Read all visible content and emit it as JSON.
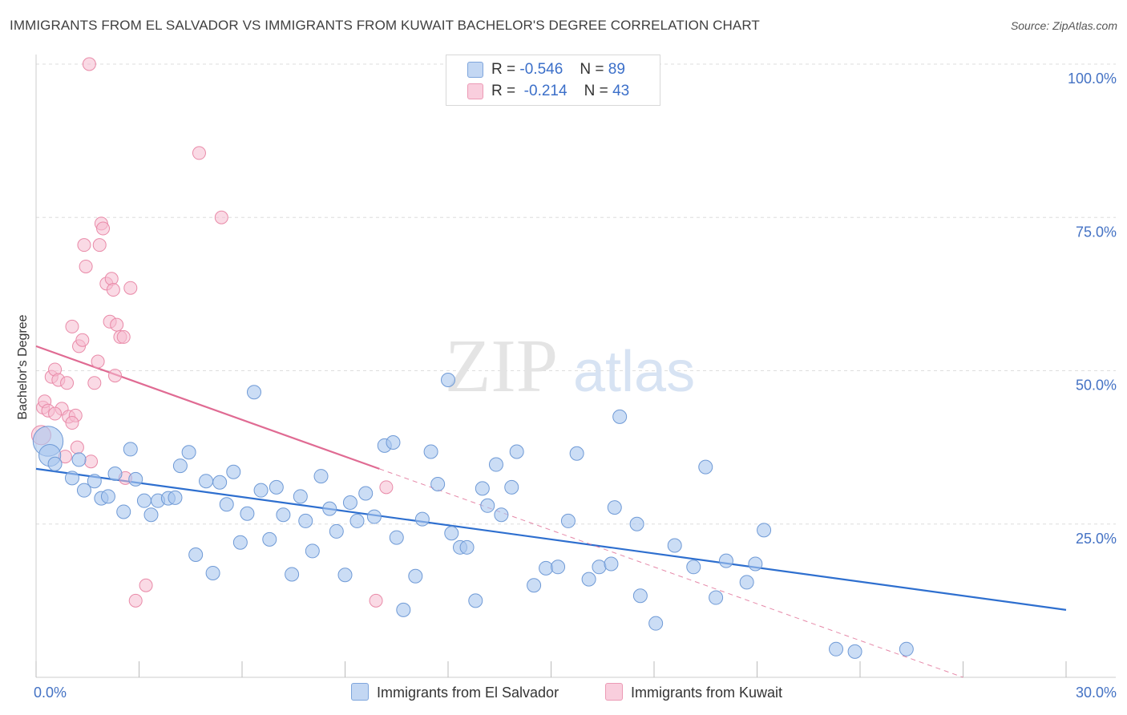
{
  "title": "IMMIGRANTS FROM EL SALVADOR VS IMMIGRANTS FROM KUWAIT BACHELOR'S DEGREE CORRELATION CHART",
  "source": "Source: ZipAtlas.com",
  "watermark": {
    "zip": "ZIP",
    "atlas": "atlas"
  },
  "legend": {
    "el_salvador": {
      "r_label": "R =",
      "r_value": "-0.546",
      "n_label": "N =",
      "n_value": "89"
    },
    "kuwait": {
      "r_label": "R =",
      "r_value": "-0.214",
      "n_label": "N =",
      "n_value": "43"
    }
  },
  "bottom_legend": {
    "el_salvador": "Immigrants from El Salvador",
    "kuwait": "Immigrants from Kuwait"
  },
  "colors": {
    "blue_fill": "#a9c6ee",
    "blue_stroke": "#6f9ad6",
    "blue_line": "#2e6fcf",
    "pink_fill": "#f6bcd0",
    "pink_stroke": "#e98aa8",
    "pink_line": "#e06b93",
    "axis_label": "#4472c4"
  },
  "chart_data": {
    "type": "scatter",
    "title": "IMMIGRANTS FROM EL SALVADOR VS IMMIGRANTS FROM KUWAIT BACHELOR'S DEGREE CORRELATION CHART",
    "xlabel": "",
    "ylabel": "Bachelor's Degree",
    "xlim": [
      0,
      30
    ],
    "ylim": [
      0,
      100
    ],
    "x_tick_labels": [
      "0.0%",
      "30.0%"
    ],
    "y_ticks": [
      {
        "value": 100,
        "label": "100.0%"
      },
      {
        "value": 75,
        "label": "75.0%"
      },
      {
        "value": 50,
        "label": "50.0%"
      },
      {
        "value": 25,
        "label": "25.0%"
      }
    ],
    "grid": "horizontal dashed",
    "legend_position": "top-center",
    "series": [
      {
        "name": "Immigrants from El Salvador",
        "color": "blue",
        "trend": {
          "x0": 0,
          "y0": 34.0,
          "x1": 30,
          "y1": 11.0,
          "dashed_extension": false
        },
        "points": [
          [
            0.35,
            38.5,
            2.2
          ],
          [
            0.4,
            36.2,
            1.6
          ],
          [
            0.55,
            34.8,
            1
          ],
          [
            1.05,
            32.5,
            1
          ],
          [
            1.25,
            35.5,
            1
          ],
          [
            1.4,
            30.5,
            1
          ],
          [
            1.7,
            32.0,
            1
          ],
          [
            1.9,
            29.2,
            1
          ],
          [
            2.1,
            29.5,
            1
          ],
          [
            2.3,
            33.2,
            1
          ],
          [
            2.55,
            27.0,
            1
          ],
          [
            2.75,
            37.2,
            1
          ],
          [
            2.9,
            32.3,
            1
          ],
          [
            3.15,
            28.8,
            1
          ],
          [
            3.35,
            26.5,
            1
          ],
          [
            3.55,
            28.8,
            1
          ],
          [
            3.85,
            29.2,
            1
          ],
          [
            4.05,
            29.3,
            1
          ],
          [
            4.2,
            34.5,
            1
          ],
          [
            4.45,
            36.7,
            1
          ],
          [
            4.65,
            20.0,
            1
          ],
          [
            4.95,
            32.0,
            1
          ],
          [
            5.15,
            17.0,
            1
          ],
          [
            5.35,
            31.8,
            1
          ],
          [
            5.55,
            28.2,
            1
          ],
          [
            5.75,
            33.5,
            1
          ],
          [
            5.95,
            22.0,
            1
          ],
          [
            6.15,
            26.7,
            1
          ],
          [
            6.35,
            46.5,
            1
          ],
          [
            6.55,
            30.5,
            1
          ],
          [
            6.8,
            22.5,
            1
          ],
          [
            7.0,
            31.0,
            1
          ],
          [
            7.2,
            26.5,
            1
          ],
          [
            7.45,
            16.8,
            1
          ],
          [
            7.7,
            29.5,
            1
          ],
          [
            7.85,
            25.5,
            1
          ],
          [
            8.05,
            20.6,
            1
          ],
          [
            8.3,
            32.8,
            1
          ],
          [
            8.55,
            27.5,
            1
          ],
          [
            8.75,
            23.8,
            1
          ],
          [
            9.0,
            16.7,
            1
          ],
          [
            9.15,
            28.5,
            1
          ],
          [
            9.35,
            25.5,
            1
          ],
          [
            9.6,
            30.0,
            1
          ],
          [
            9.85,
            26.2,
            1
          ],
          [
            10.15,
            37.8,
            1
          ],
          [
            10.4,
            38.3,
            1
          ],
          [
            10.5,
            22.8,
            1
          ],
          [
            10.7,
            11.0,
            1
          ],
          [
            11.05,
            16.5,
            1
          ],
          [
            11.25,
            25.8,
            1
          ],
          [
            11.5,
            36.8,
            1
          ],
          [
            11.7,
            31.5,
            1
          ],
          [
            12.0,
            48.5,
            1
          ],
          [
            12.1,
            23.5,
            1
          ],
          [
            12.35,
            21.2,
            1
          ],
          [
            12.55,
            21.2,
            1
          ],
          [
            12.8,
            12.5,
            1
          ],
          [
            13.0,
            30.8,
            1
          ],
          [
            13.15,
            28.0,
            1
          ],
          [
            13.4,
            34.7,
            1
          ],
          [
            13.55,
            26.5,
            1
          ],
          [
            13.85,
            31.0,
            1
          ],
          [
            14.0,
            36.8,
            1
          ],
          [
            14.5,
            15.0,
            1
          ],
          [
            14.85,
            17.8,
            1
          ],
          [
            15.2,
            18.0,
            1
          ],
          [
            15.5,
            25.5,
            1
          ],
          [
            15.75,
            36.5,
            1
          ],
          [
            16.1,
            16.0,
            1
          ],
          [
            16.4,
            18.0,
            1
          ],
          [
            16.75,
            18.5,
            1
          ],
          [
            16.85,
            27.7,
            1
          ],
          [
            17.0,
            42.5,
            1
          ],
          [
            17.5,
            25.0,
            1
          ],
          [
            17.6,
            13.3,
            1
          ],
          [
            18.05,
            8.8,
            1
          ],
          [
            18.6,
            21.5,
            1
          ],
          [
            19.15,
            18.0,
            1
          ],
          [
            19.5,
            34.3,
            1
          ],
          [
            19.8,
            13.0,
            1
          ],
          [
            20.1,
            19.0,
            1
          ],
          [
            20.7,
            15.5,
            1
          ],
          [
            20.95,
            18.5,
            1
          ],
          [
            21.2,
            24.0,
            1
          ],
          [
            23.3,
            4.6,
            1
          ],
          [
            23.85,
            4.2,
            1
          ],
          [
            25.35,
            4.6,
            1
          ]
        ]
      },
      {
        "name": "Immigrants from Kuwait",
        "color": "pink",
        "trend": {
          "x0": 0,
          "y0": 54.0,
          "x1": 10.0,
          "y1": 34.0,
          "dashed_extension": true,
          "dash_to": [
            27.0,
            0
          ]
        },
        "points": [
          [
            0.15,
            39.5,
            1.5
          ],
          [
            0.2,
            44.0,
            1
          ],
          [
            0.25,
            45.0,
            1
          ],
          [
            0.35,
            43.5,
            1
          ],
          [
            0.45,
            49.0,
            1
          ],
          [
            0.55,
            50.2,
            1
          ],
          [
            0.65,
            48.5,
            1
          ],
          [
            0.75,
            43.8,
            1
          ],
          [
            0.85,
            36.0,
            1
          ],
          [
            0.95,
            42.5,
            1
          ],
          [
            1.05,
            57.2,
            1
          ],
          [
            1.15,
            42.7,
            1
          ],
          [
            1.25,
            54.0,
            1
          ],
          [
            1.35,
            55.0,
            1
          ],
          [
            1.4,
            70.5,
            1
          ],
          [
            1.45,
            67.0,
            1
          ],
          [
            1.55,
            100.0,
            1
          ],
          [
            1.6,
            35.2,
            1
          ],
          [
            1.7,
            48.0,
            1
          ],
          [
            1.8,
            51.5,
            1
          ],
          [
            1.85,
            70.5,
            1
          ],
          [
            1.9,
            74.0,
            1
          ],
          [
            1.95,
            73.2,
            1
          ],
          [
            2.05,
            64.2,
            1
          ],
          [
            2.15,
            58.0,
            1
          ],
          [
            2.2,
            65.0,
            1
          ],
          [
            2.25,
            63.2,
            1
          ],
          [
            2.3,
            49.2,
            1
          ],
          [
            2.35,
            57.5,
            1
          ],
          [
            2.45,
            55.5,
            1
          ],
          [
            2.55,
            55.5,
            1
          ],
          [
            2.6,
            32.5,
            1
          ],
          [
            2.75,
            63.5,
            1
          ],
          [
            2.9,
            12.5,
            1
          ],
          [
            3.2,
            15.0,
            1
          ],
          [
            4.75,
            85.5,
            1
          ],
          [
            5.4,
            75.0,
            1
          ],
          [
            9.9,
            12.5,
            1
          ],
          [
            10.2,
            31.0,
            1
          ],
          [
            0.55,
            43.0,
            1
          ],
          [
            0.9,
            48.0,
            1
          ],
          [
            1.05,
            41.5,
            1
          ],
          [
            1.2,
            37.5,
            1
          ]
        ]
      }
    ]
  }
}
